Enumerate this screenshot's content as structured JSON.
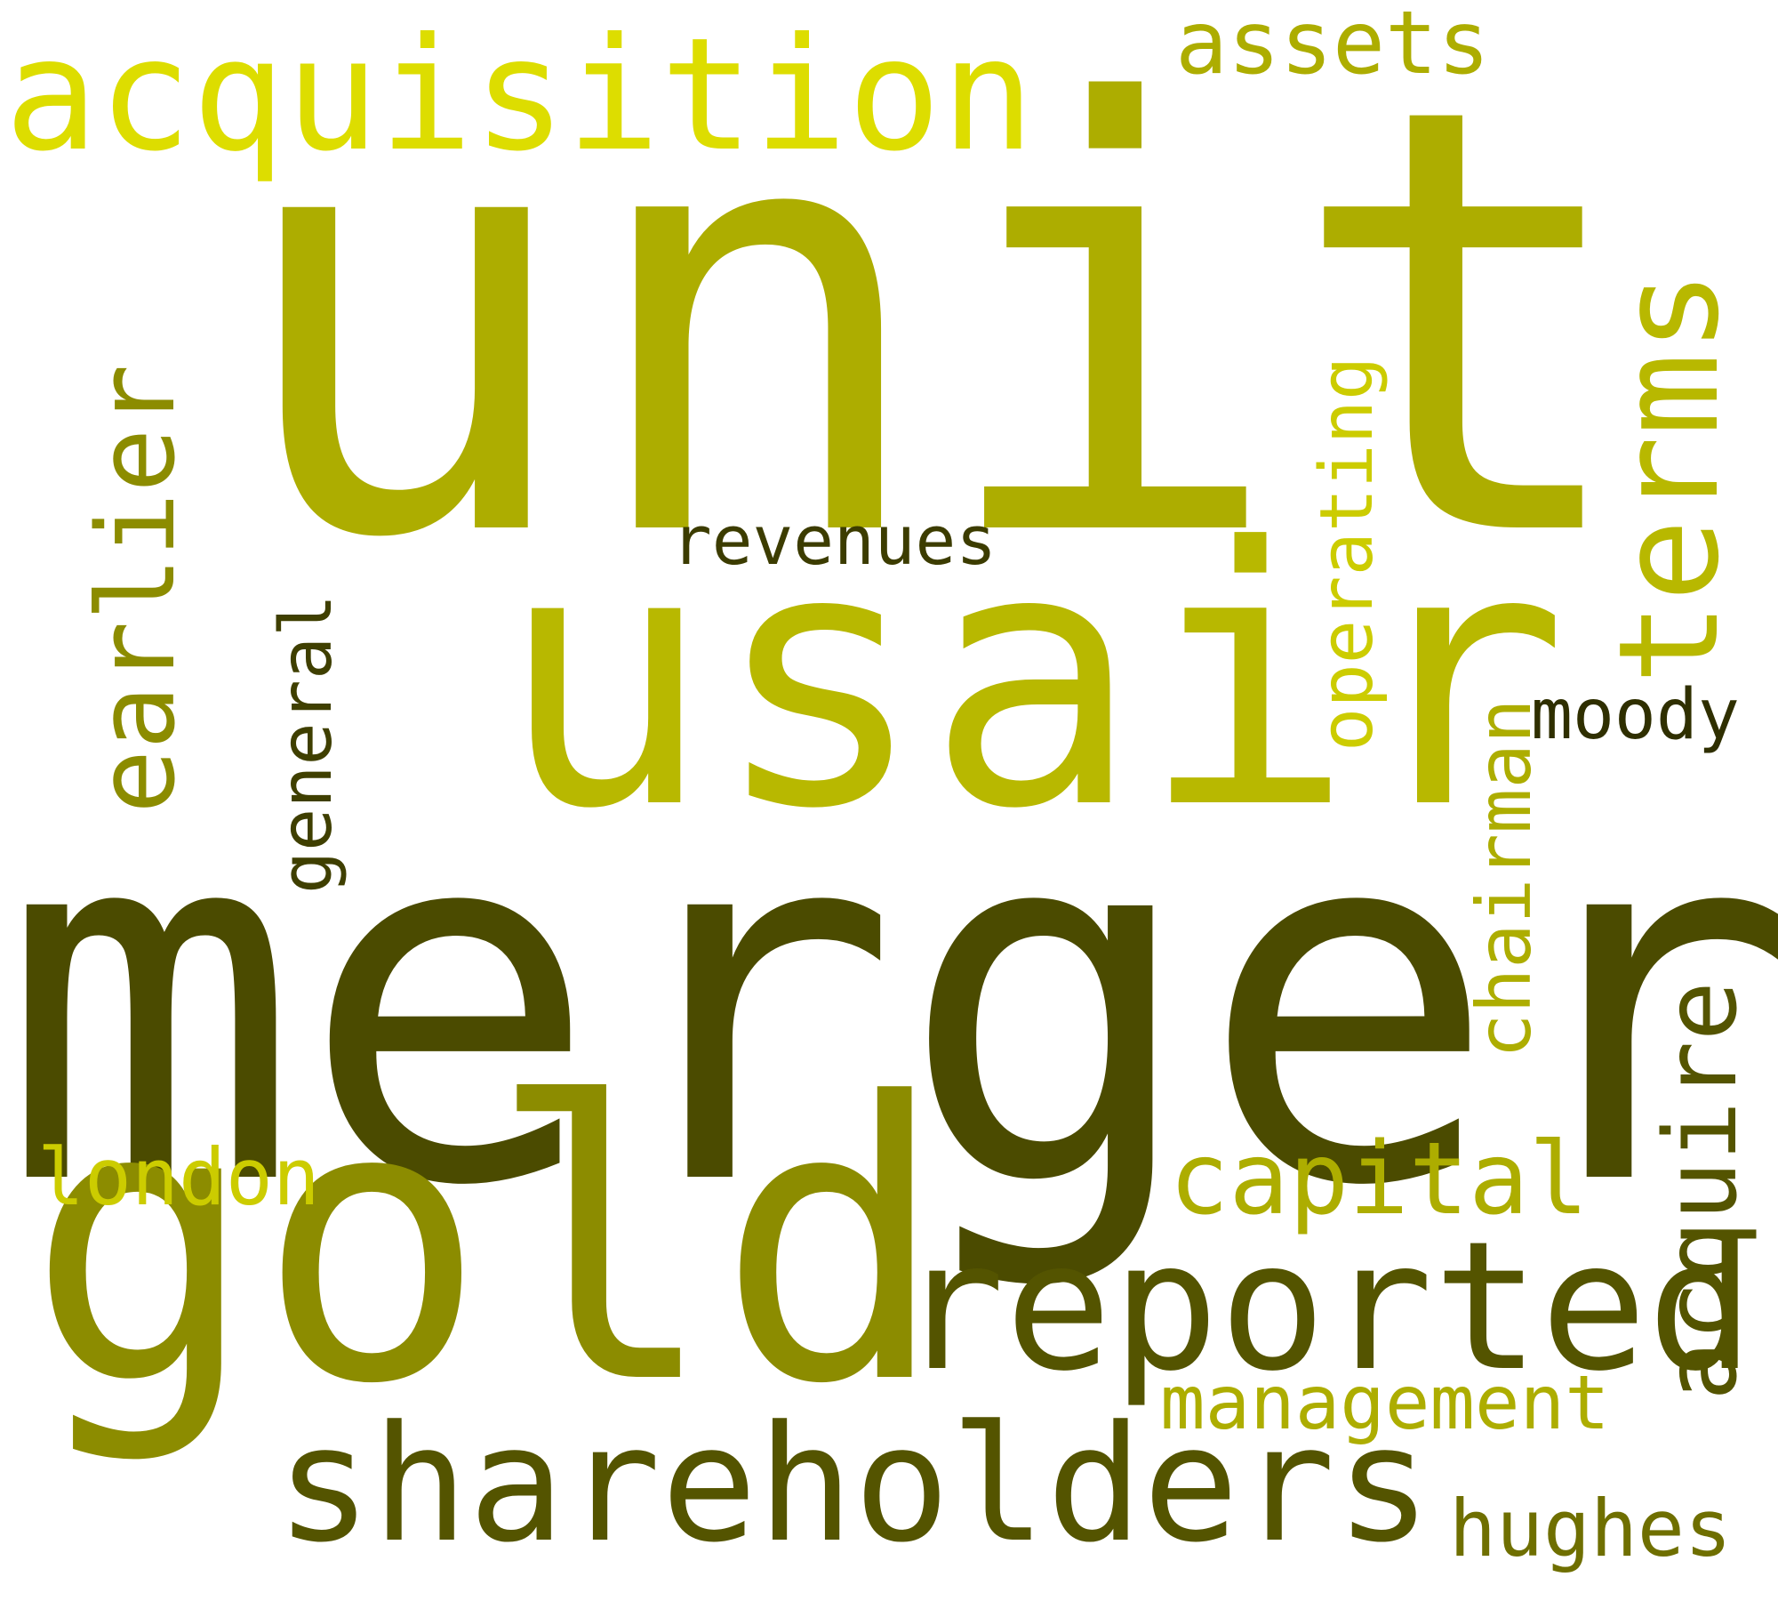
{
  "words": {
    "unit": "unit",
    "merger": "merger",
    "usair": "usair",
    "gold": "gold",
    "acquisition": "acquisition",
    "reported": "reported",
    "shareholders": "shareholders",
    "earlier": "earlier",
    "terms": "terms",
    "capital": "capital",
    "acquire": "acquire",
    "assets": "assets",
    "operating": "operating",
    "chairman": "chairman",
    "revenues": "revenues",
    "moody": "moody",
    "general": "general",
    "london": "london",
    "management": "management",
    "hughes": "hughes"
  },
  "palette": {
    "darkest": "#2f2f00",
    "dark": "#4b4b00",
    "olive": "#545400",
    "mid": "#8c8c00",
    "gold": "#adad00",
    "bright": "#b8b800",
    "light": "#cccc00",
    "lightest": "#dddd00"
  }
}
